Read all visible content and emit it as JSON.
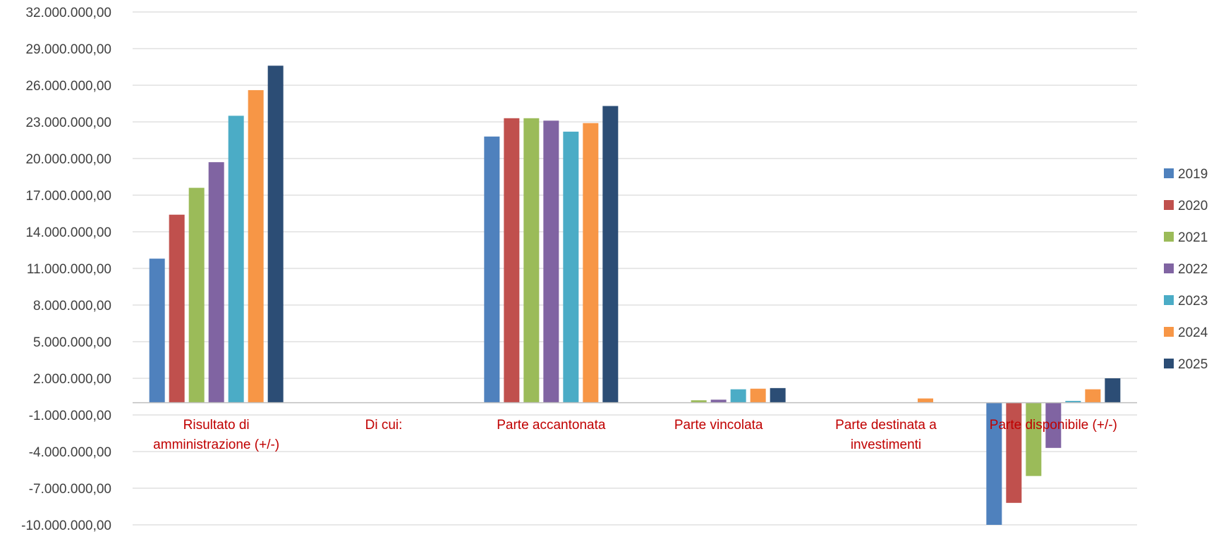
{
  "chart_data": {
    "type": "bar",
    "title": "",
    "xlabel": "",
    "ylabel": "",
    "ylim": [
      -10000000,
      32000000
    ],
    "y_ticks": [
      "32.000.000,00",
      "29.000.000,00",
      "26.000.000,00",
      "23.000.000,00",
      "20.000.000,00",
      "17.000.000,00",
      "14.000.000,00",
      "11.000.000,00",
      "8.000.000,00",
      "5.000.000,00",
      "2.000.000,00",
      "-1.000.000,00",
      "-4.000.000,00",
      "-7.000.000,00",
      "-10.000.000,00"
    ],
    "y_tick_values": [
      32000000,
      29000000,
      26000000,
      23000000,
      20000000,
      17000000,
      14000000,
      11000000,
      8000000,
      5000000,
      2000000,
      -1000000,
      -4000000,
      -7000000,
      -10000000
    ],
    "grid": true,
    "legend_position": "right",
    "categories": [
      "Risultato di amministrazione (+/-)",
      "Di cui:",
      "Parte accantonata",
      "Parte vincolata",
      "Parte destinata a investimenti",
      "Parte disponibile (+/-)"
    ],
    "category_lines": [
      [
        "Risultato di",
        "amministrazione (+/-)"
      ],
      [
        "Di cui:"
      ],
      [
        "Parte accantonata"
      ],
      [
        "Parte vincolata"
      ],
      [
        "Parte destinata a",
        "investimenti"
      ],
      [
        "Parte disponibile (+/-)"
      ]
    ],
    "series": [
      {
        "name": "2019",
        "color": "#4F81BD",
        "values": [
          11800000,
          0,
          21800000,
          0,
          0,
          -10000000
        ]
      },
      {
        "name": "2020",
        "color": "#C0504D",
        "values": [
          15400000,
          0,
          23300000,
          0,
          0,
          -8200000
        ]
      },
      {
        "name": "2021",
        "color": "#9BBB59",
        "values": [
          17600000,
          0,
          23300000,
          200000,
          0,
          -6000000
        ]
      },
      {
        "name": "2022",
        "color": "#8064A2",
        "values": [
          19700000,
          0,
          23100000,
          250000,
          0,
          -3700000
        ]
      },
      {
        "name": "2023",
        "color": "#4BACC6",
        "values": [
          23500000,
          0,
          22200000,
          1100000,
          0,
          150000
        ]
      },
      {
        "name": "2024",
        "color": "#F79646",
        "values": [
          25600000,
          0,
          22900000,
          1150000,
          350000,
          1100000
        ]
      },
      {
        "name": "2025",
        "color": "#2C4D75",
        "values": [
          27600000,
          0,
          24300000,
          1200000,
          0,
          2000000
        ]
      }
    ]
  }
}
